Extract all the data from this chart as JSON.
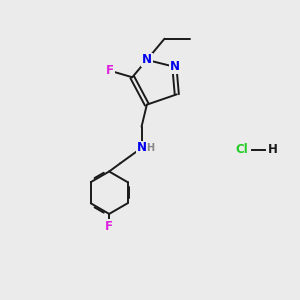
{
  "bg_color": "#ebebeb",
  "bond_color": "#1a1a1a",
  "bond_width": 1.4,
  "atom_colors": {
    "N": "#0000ee",
    "F": "#dd22dd",
    "Cl": "#22cc22",
    "H_gray": "#888888"
  },
  "font_size": 8.5,
  "figsize": [
    3.0,
    3.0
  ],
  "dpi": 100
}
